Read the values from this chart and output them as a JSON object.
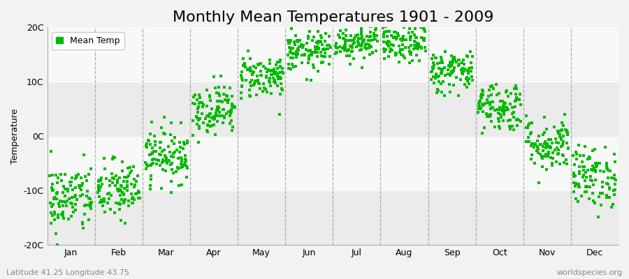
{
  "title": "Monthly Mean Temperatures 1901 - 2009",
  "ylabel": "Temperature",
  "bottom_left": "Latitude 41.25 Longitude 43.75",
  "bottom_right": "worldspecies.org",
  "legend_label": "Mean Temp",
  "marker_color": "#00bb00",
  "marker": "s",
  "marker_size": 3.5,
  "ylim": [
    -20,
    20
  ],
  "yticks": [
    -20,
    -10,
    0,
    10,
    20
  ],
  "ytick_labels": [
    "-20C",
    "-10C",
    "0C",
    "10C",
    "20C"
  ],
  "months": [
    "Jan",
    "Feb",
    "Mar",
    "Apr",
    "May",
    "Jun",
    "Jul",
    "Aug",
    "Sep",
    "Oct",
    "Nov",
    "Dec"
  ],
  "monthly_means": [
    -11.5,
    -10.0,
    -3.5,
    5.0,
    11.0,
    15.5,
    17.5,
    17.0,
    12.0,
    5.5,
    -1.5,
    -7.5
  ],
  "monthly_stds": [
    3.2,
    2.8,
    2.5,
    2.3,
    2.0,
    1.8,
    1.7,
    1.8,
    2.0,
    2.3,
    2.5,
    2.8
  ],
  "n_years": 109,
  "background_color": "#f2f2f2",
  "plot_bg": "#ffffff",
  "band_colors": [
    "#ebebeb",
    "#f8f8f8"
  ],
  "grid_color": "#999999",
  "title_fontsize": 16,
  "label_fontsize": 9,
  "tick_fontsize": 9,
  "random_seed": 42
}
